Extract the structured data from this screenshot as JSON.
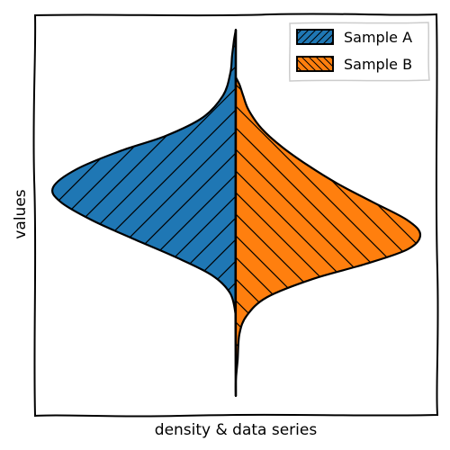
{
  "chart_data": {
    "type": "violin",
    "title": "",
    "xlabel": "density & data series",
    "ylabel": "values",
    "grid": false,
    "legend": {
      "position": "top-right"
    },
    "series": [
      {
        "name": "Sample A",
        "side": "left",
        "color": "#1f77b4",
        "hatch": "/",
        "profile": [
          {
            "y": 0.0,
            "w": 0.0
          },
          {
            "y": 0.03,
            "w": 0.01
          },
          {
            "y": 0.07,
            "w": 0.02
          },
          {
            "y": 0.12,
            "w": 0.03
          },
          {
            "y": 0.18,
            "w": 0.07
          },
          {
            "y": 0.24,
            "w": 0.18
          },
          {
            "y": 0.29,
            "w": 0.38
          },
          {
            "y": 0.33,
            "w": 0.62
          },
          {
            "y": 0.38,
            "w": 0.86
          },
          {
            "y": 0.43,
            "w": 0.99
          },
          {
            "y": 0.47,
            "w": 0.95
          },
          {
            "y": 0.52,
            "w": 0.78
          },
          {
            "y": 0.57,
            "w": 0.56
          },
          {
            "y": 0.62,
            "w": 0.33
          },
          {
            "y": 0.67,
            "w": 0.13
          },
          {
            "y": 0.72,
            "w": 0.03
          },
          {
            "y": 0.78,
            "w": 0.0
          }
        ]
      },
      {
        "name": "Sample B",
        "side": "right",
        "color": "#ff7f0e",
        "hatch": "\\",
        "profile": [
          {
            "y": 0.13,
            "w": 0.0
          },
          {
            "y": 0.15,
            "w": 0.02
          },
          {
            "y": 0.18,
            "w": 0.04
          },
          {
            "y": 0.22,
            "w": 0.07
          },
          {
            "y": 0.27,
            "w": 0.14
          },
          {
            "y": 0.32,
            "w": 0.25
          },
          {
            "y": 0.37,
            "w": 0.39
          },
          {
            "y": 0.42,
            "w": 0.55
          },
          {
            "y": 0.47,
            "w": 0.74
          },
          {
            "y": 0.52,
            "w": 0.93
          },
          {
            "y": 0.56,
            "w": 1.0
          },
          {
            "y": 0.6,
            "w": 0.93
          },
          {
            "y": 0.64,
            "w": 0.7
          },
          {
            "y": 0.68,
            "w": 0.42
          },
          {
            "y": 0.73,
            "w": 0.17
          },
          {
            "y": 0.78,
            "w": 0.06
          },
          {
            "y": 0.83,
            "w": 0.02
          },
          {
            "y": 0.9,
            "w": 0.01
          },
          {
            "y": 0.96,
            "w": 0.0
          },
          {
            "y": 1.0,
            "w": 0.0
          }
        ]
      }
    ]
  }
}
